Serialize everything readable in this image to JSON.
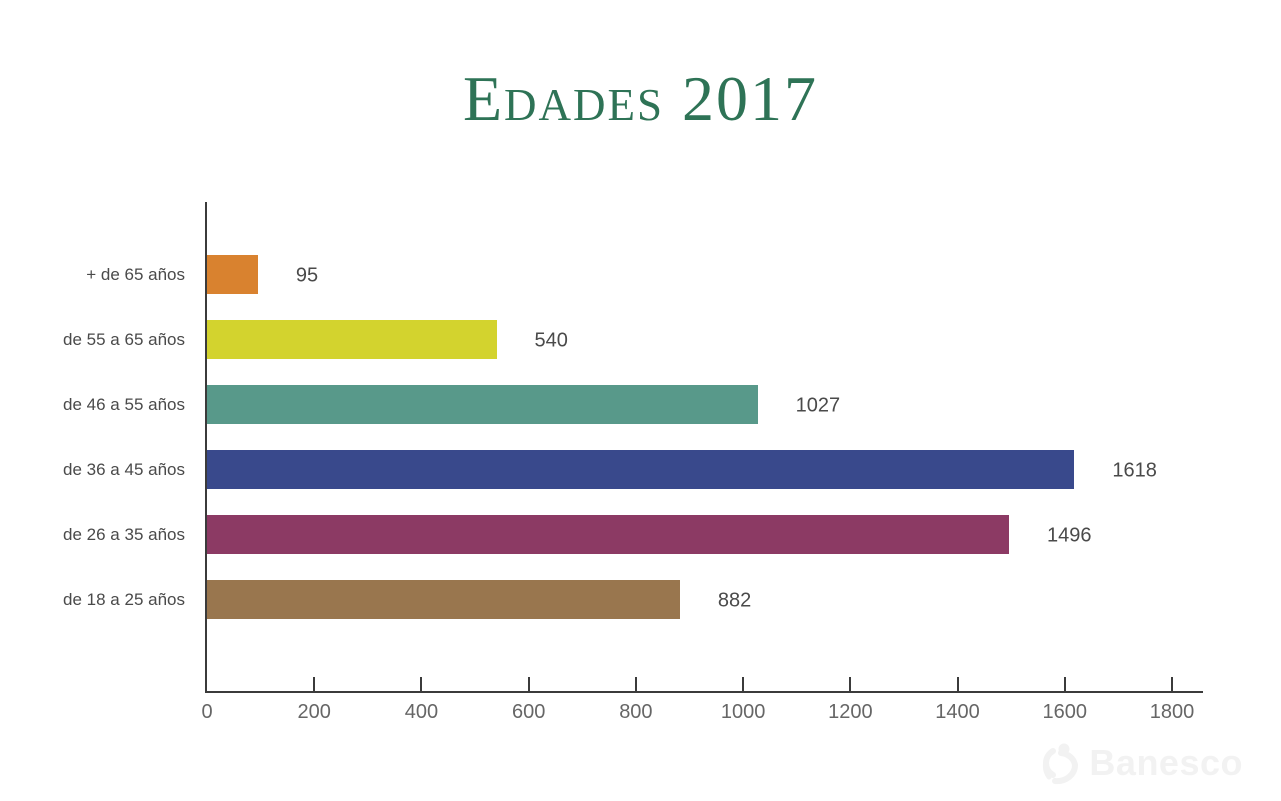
{
  "chart_data": {
    "type": "bar",
    "orientation": "horizontal",
    "title": "Edades 2017",
    "title_color": "#2e7356",
    "categories": [
      "+ de 65 años",
      "de 55 a 65 años",
      "de 46 a 55 años",
      "de 36 a 45 años",
      "de 26 a 35 años",
      "de 18 a 25 años"
    ],
    "values": [
      95,
      540,
      1027,
      1618,
      1496,
      882
    ],
    "bar_colors": [
      "#d9822f",
      "#d3d32e",
      "#58998a",
      "#39498c",
      "#8c3a64",
      "#99764e"
    ],
    "value_labels_shown": true,
    "x_ticks": [
      0,
      200,
      400,
      600,
      800,
      1000,
      1200,
      1400,
      1600,
      1800
    ],
    "xlim": [
      0,
      1800
    ],
    "xlabel": "",
    "ylabel": "",
    "grid": false,
    "legend": false,
    "axis_color": "#3b3b3b",
    "tick_label_color": "#666666",
    "label_color": "#4a4a4a"
  },
  "watermark": {
    "text": "Banesco",
    "color": "#f2f2f2"
  }
}
